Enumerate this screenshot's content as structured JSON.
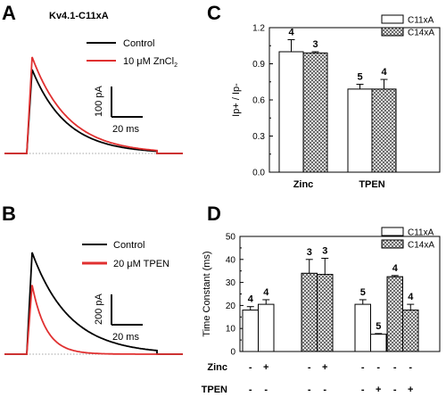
{
  "panels": {
    "A": {
      "letter": "A",
      "title": "Kv4.1-C11xA",
      "legend": [
        {
          "label": "Control",
          "color": "#000000"
        },
        {
          "label_prefix": "10 μM ZnCl",
          "label_sub": "2",
          "color": "#e03030"
        }
      ],
      "scale_current": "100 pA",
      "scale_time": "20 ms",
      "traces": [
        {
          "name": "Control",
          "color": "#000000",
          "peak": 1.0,
          "tau_ms": 22
        },
        {
          "name": "10 μM ZnCl2",
          "color": "#e03030",
          "peak": 1.15,
          "tau_ms": 23
        }
      ]
    },
    "B": {
      "letter": "B",
      "legend": [
        {
          "label": "Control",
          "color": "#000000"
        },
        {
          "label": "20 μM TPEN",
          "color": "#e03030"
        }
      ],
      "scale_current": "200 pA",
      "scale_time": "20 ms",
      "traces": [
        {
          "name": "Control",
          "color": "#000000",
          "peak": 1.0,
          "tau_ms": 24
        },
        {
          "name": "20 μM TPEN",
          "color": "#e03030",
          "peak": 0.68,
          "tau_ms": 9
        }
      ]
    },
    "C": {
      "letter": "C"
    },
    "D": {
      "letter": "D"
    }
  },
  "chart_data": [
    {
      "panel": "C",
      "type": "bar",
      "ylabel": "Ip+ / Ip-",
      "xlabel": "",
      "ylim": [
        0.0,
        1.2
      ],
      "yticks": [
        "0.0",
        "0.3",
        "0.6",
        "0.9",
        "1.2"
      ],
      "categories": [
        "Zinc",
        "TPEN"
      ],
      "series": [
        {
          "name": "C11xA",
          "fill": "open",
          "values": [
            1.0,
            0.69
          ],
          "errors": [
            0.1,
            0.04
          ],
          "n": [
            "4",
            "5"
          ]
        },
        {
          "name": "C14xA",
          "fill": "hatched",
          "values": [
            0.99,
            0.69
          ],
          "errors": [
            0.01,
            0.08
          ],
          "n": [
            "3",
            "4"
          ]
        }
      ],
      "legend_position": "top-right"
    },
    {
      "panel": "D",
      "type": "bar",
      "ylabel": "Time Constant (ms)",
      "xlabel": "",
      "ylim": [
        0,
        50
      ],
      "yticks": [
        "0",
        "10",
        "20",
        "30",
        "40",
        "50"
      ],
      "bars": [
        {
          "series": "C11xA",
          "value": 18.0,
          "error": 1.5,
          "n": "4",
          "zinc": "-",
          "tpen": "-"
        },
        {
          "series": "C11xA",
          "value": 20.5,
          "error": 2.0,
          "n": "4",
          "zinc": "+",
          "tpen": "-"
        },
        {
          "series": "C14xA",
          "value": 34.0,
          "error": 6.0,
          "n": "3",
          "zinc": "-",
          "tpen": "-"
        },
        {
          "series": "C14xA",
          "value": 33.5,
          "error": 7.0,
          "n": "3",
          "zinc": "+",
          "tpen": "-"
        },
        {
          "series": "C11xA",
          "value": 20.5,
          "error": 2.0,
          "n": "5",
          "zinc": "-",
          "tpen": "-"
        },
        {
          "series": "C11xA",
          "value": 7.5,
          "error": 0.3,
          "n": "5",
          "zinc": "-",
          "tpen": "+"
        },
        {
          "series": "C14xA",
          "value": 32.5,
          "error": 0.5,
          "n": "4",
          "zinc": "-",
          "tpen": "-"
        },
        {
          "series": "C14xA",
          "value": 18.0,
          "error": 2.5,
          "n": "4",
          "zinc": "-",
          "tpen": "+"
        }
      ],
      "series": [
        {
          "name": "C11xA",
          "fill": "open"
        },
        {
          "name": "C14xA",
          "fill": "hatched"
        }
      ],
      "row_labels": [
        "Zinc",
        "TPEN"
      ],
      "legend_position": "top-right"
    }
  ]
}
